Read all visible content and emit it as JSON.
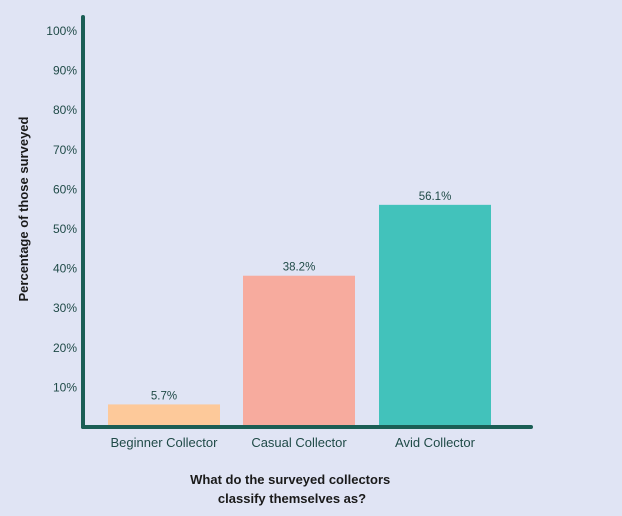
{
  "chart_data": {
    "type": "bar",
    "categories": [
      "Beginner Collector",
      "Casual Collector",
      "Avid Collector"
    ],
    "values": [
      5.7,
      38.2,
      56.1
    ],
    "value_labels": [
      "5.7%",
      "38.2%",
      "56.1%"
    ],
    "bar_colors": [
      "#fdc99a",
      "#f7ab9e",
      "#42c2bb"
    ],
    "title": "",
    "xlabel": [
      "What do the surveyed collectors",
      "classify themselves as?"
    ],
    "ylabel": "Percentage of those surveyed",
    "ylim": [
      0,
      100
    ],
    "yticks": [
      10,
      20,
      30,
      40,
      50,
      60,
      70,
      80,
      90,
      100
    ],
    "ytick_labels": [
      "10%",
      "20%",
      "30%",
      "40%",
      "50%",
      "60%",
      "70%",
      "80%",
      "90%",
      "100%"
    ],
    "grid": false,
    "legend": "none",
    "axis_color": "#1b5e55",
    "background": "#e0e4f4"
  }
}
